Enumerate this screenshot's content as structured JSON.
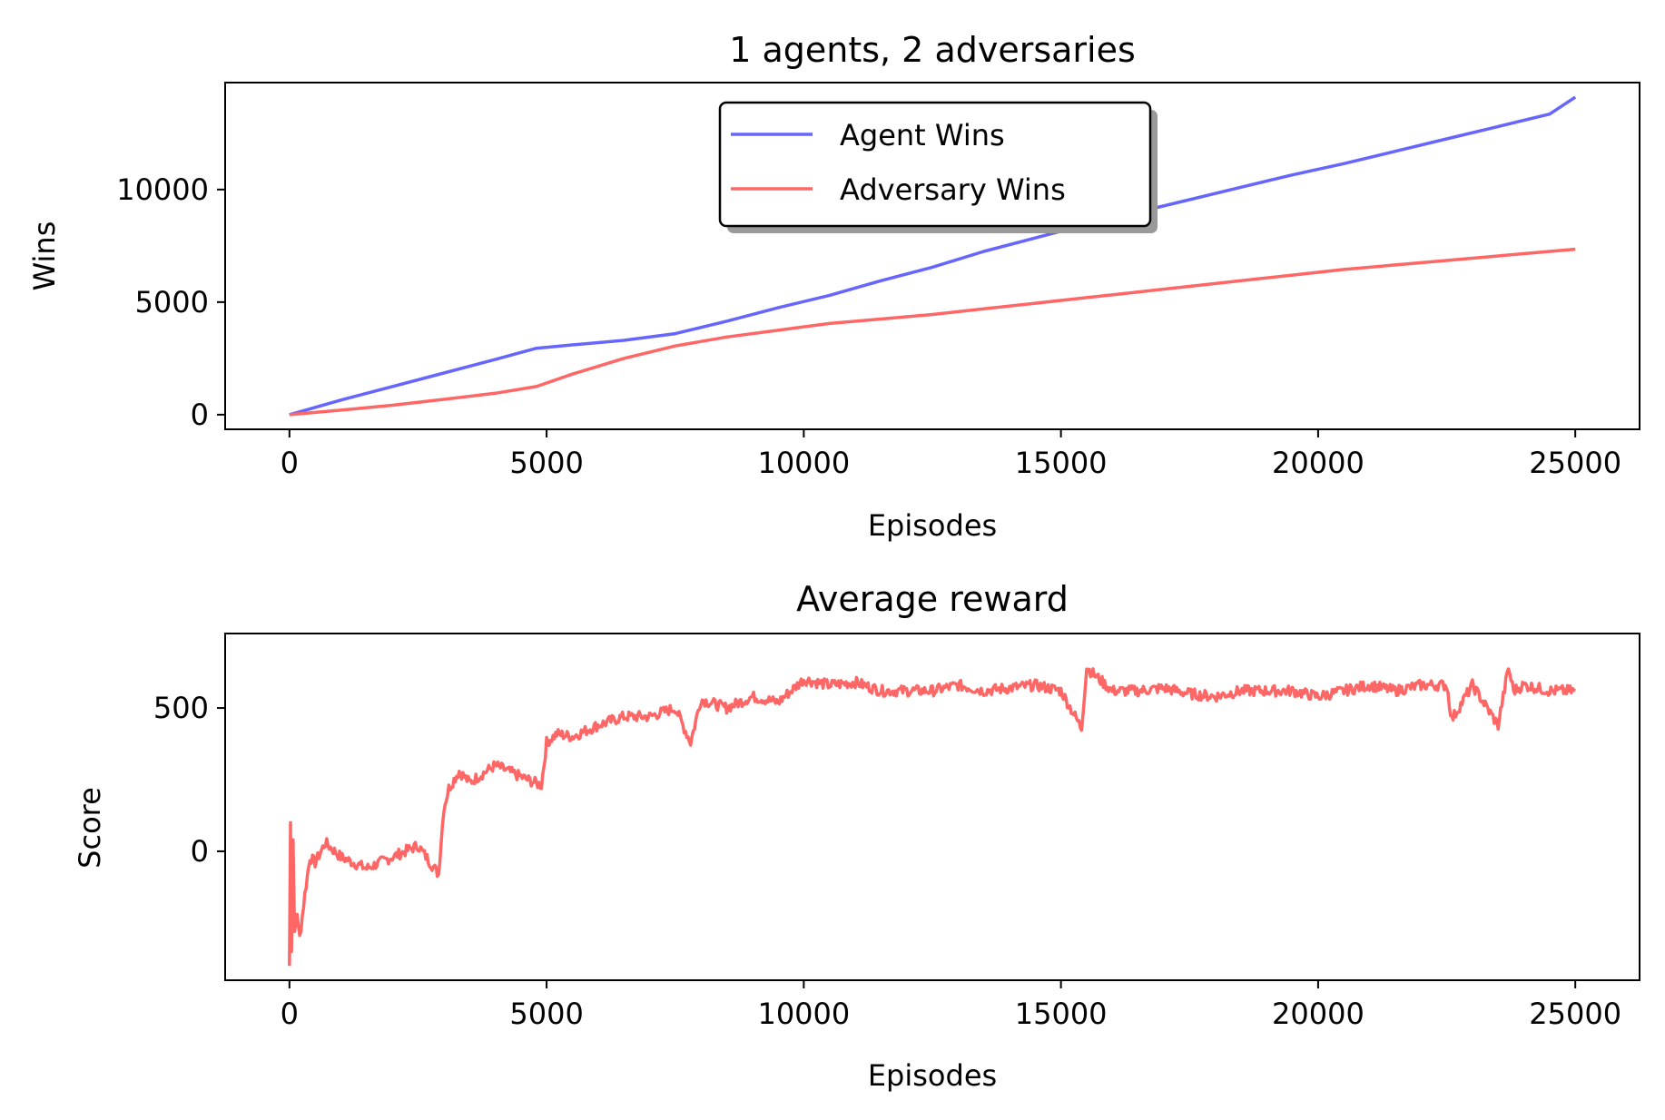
{
  "chart_data": [
    {
      "type": "line",
      "title": "1 agents, 2 adversaries",
      "xlabel": "Episodes",
      "ylabel": "Wins",
      "xlim": [
        -1250,
        26250
      ],
      "ylim": [
        -650,
        14750
      ],
      "xticks": [
        0,
        5000,
        10000,
        15000,
        20000,
        25000
      ],
      "yticks": [
        0,
        5000,
        10000
      ],
      "grid": false,
      "legend": "upper center",
      "series": [
        {
          "name": "Agent Wins",
          "color": "#6666ff",
          "x": [
            0,
            1000,
            2000,
            3000,
            4000,
            4800,
            5500,
            6500,
            7500,
            8500,
            9500,
            10500,
            11500,
            12500,
            13500,
            14500,
            15500,
            16500,
            17500,
            18500,
            19500,
            20500,
            21500,
            22500,
            23500,
            24500,
            25000
          ],
          "y": [
            0,
            650,
            1250,
            1850,
            2450,
            2950,
            3100,
            3300,
            3600,
            4150,
            4750,
            5300,
            5950,
            6550,
            7250,
            7850,
            8450,
            9000,
            9550,
            10100,
            10650,
            11150,
            11700,
            12250,
            12800,
            13350,
            14100
          ]
        },
        {
          "name": "Adversary Wins",
          "color": "#ff6666",
          "x": [
            0,
            1000,
            2000,
            3000,
            4000,
            4800,
            5500,
            6500,
            7500,
            8500,
            9500,
            10500,
            11500,
            12500,
            13500,
            14500,
            15500,
            16500,
            17500,
            18500,
            19500,
            20500,
            21500,
            22500,
            23500,
            24500,
            25000
          ],
          "y": [
            0,
            200,
            420,
            680,
            950,
            1250,
            1800,
            2500,
            3050,
            3450,
            3750,
            4050,
            4250,
            4450,
            4700,
            4950,
            5200,
            5450,
            5700,
            5950,
            6200,
            6450,
            6650,
            6850,
            7050,
            7250,
            7350
          ]
        }
      ]
    },
    {
      "type": "line",
      "title": "Average reward",
      "xlabel": "Episodes",
      "ylabel": "Score",
      "xlim": [
        -1250,
        26250
      ],
      "ylim": [
        -450,
        760
      ],
      "xticks": [
        0,
        5000,
        10000,
        15000,
        20000,
        25000
      ],
      "yticks": [
        0,
        500
      ],
      "grid": false,
      "series": [
        {
          "color": "#ff6666",
          "x": [
            0,
            20,
            40,
            70,
            100,
            150,
            200,
            300,
            400,
            500,
            700,
            1000,
            1500,
            2000,
            2500,
            2900,
            3000,
            3100,
            3300,
            3500,
            4000,
            4500,
            4900,
            5000,
            5200,
            5500,
            6000,
            6500,
            7000,
            7500,
            7800,
            8000,
            8500,
            9000,
            9500,
            10000,
            10500,
            11000,
            11500,
            12000,
            12500,
            13000,
            13500,
            14000,
            14500,
            15000,
            15400,
            15500,
            16000,
            16500,
            17000,
            17500,
            18000,
            18500,
            19000,
            19500,
            20000,
            20500,
            21000,
            21500,
            22000,
            22500,
            22600,
            23000,
            23500,
            23700,
            23800,
            24000,
            24500,
            25000
          ],
          "y": [
            -400,
            100,
            -350,
            40,
            -280,
            -220,
            -300,
            -150,
            -20,
            -40,
            30,
            -20,
            -60,
            -20,
            20,
            -80,
            150,
            220,
            280,
            240,
            300,
            260,
            230,
            380,
            410,
            400,
            440,
            470,
            470,
            500,
            380,
            530,
            500,
            540,
            520,
            600,
            580,
            590,
            560,
            560,
            560,
            580,
            560,
            570,
            580,
            560,
            430,
            640,
            560,
            560,
            570,
            550,
            540,
            560,
            560,
            560,
            540,
            560,
            580,
            560,
            580,
            580,
            460,
            580,
            440,
            640,
            560,
            580,
            560,
            560
          ]
        }
      ]
    }
  ]
}
